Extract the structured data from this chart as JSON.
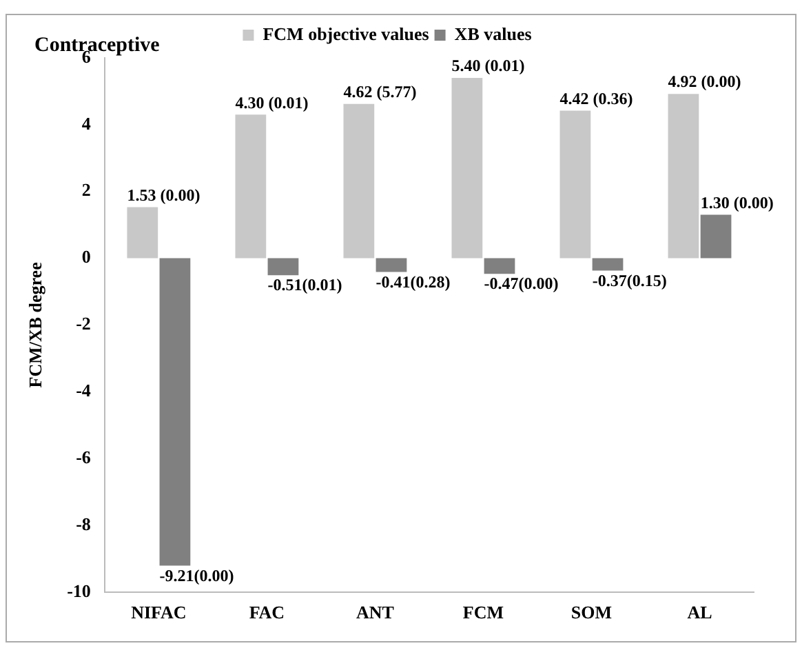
{
  "chart_data": {
    "type": "bar",
    "title": "Contraceptive",
    "ylabel": "FCM/XB degree",
    "categories": [
      "NIFAC",
      "FAC",
      "ANT",
      "FCM",
      "SOM",
      "AL"
    ],
    "series": [
      {
        "name": "FCM objective values",
        "color": "#c8c8c8",
        "values": [
          1.53,
          4.3,
          4.62,
          5.4,
          4.42,
          4.92
        ],
        "value_labels": [
          "1.53 (0.00)",
          "4.30 (0.01)",
          "4.62 (5.77)",
          "5.40 (0.01)",
          "4.42 (0.36)",
          "4.92 (0.00)"
        ]
      },
      {
        "name": "XB values",
        "color": "#808080",
        "values": [
          -9.21,
          -0.51,
          -0.41,
          -0.47,
          -0.37,
          1.3
        ],
        "value_labels": [
          "-9.21(0.00)",
          "-0.51(0.01)",
          "-0.41(0.28)",
          "-0.47(0.00)",
          "-0.37(0.15)",
          "1.30 (0.00)"
        ]
      }
    ],
    "ylim": [
      -10,
      6
    ],
    "yticks": [
      -10,
      -8,
      -6,
      -4,
      -2,
      0,
      2,
      4,
      6
    ],
    "grid": false,
    "legend": "top"
  }
}
